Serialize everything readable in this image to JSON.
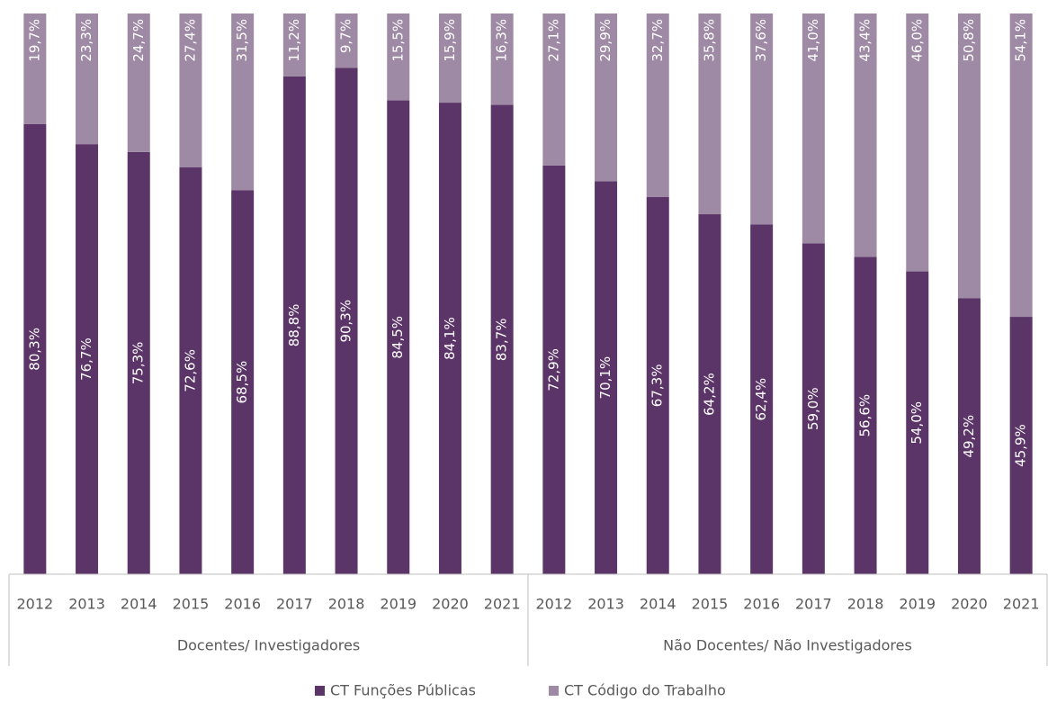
{
  "chart_data": {
    "type": "stacked-bar",
    "categories": [
      "2012",
      "2013",
      "2014",
      "2015",
      "2016",
      "2017",
      "2018",
      "2019",
      "2020",
      "2021",
      "2012",
      "2013",
      "2014",
      "2015",
      "2016",
      "2017",
      "2018",
      "2019",
      "2020",
      "2021"
    ],
    "groups": [
      "Docentes/ Investigadores",
      "Não Docentes/ Não Investigadores"
    ],
    "ylim": [
      0,
      100
    ],
    "series": [
      {
        "name": "CT Funções Públicas",
        "color": "#5c3568",
        "values": [
          80.3,
          76.7,
          75.3,
          72.6,
          68.5,
          88.8,
          90.3,
          84.5,
          84.1,
          83.7,
          72.9,
          70.1,
          67.3,
          64.2,
          62.4,
          59.0,
          56.6,
          54.0,
          49.2,
          45.9
        ],
        "value_labels": [
          "80,3%",
          "76,7%",
          "75,3%",
          "72,6%",
          "68,5%",
          "88,8%",
          "90,3%",
          "84,5%",
          "84,1%",
          "83,7%",
          "72,9%",
          "70,1%",
          "67,3%",
          "64,2%",
          "62,4%",
          "59,0%",
          "56,6%",
          "54,0%",
          "49,2%",
          "45,9%"
        ]
      },
      {
        "name": "CT Código do Trabalho",
        "color": "#9e8aa4",
        "values": [
          19.7,
          23.3,
          24.7,
          27.4,
          31.5,
          11.2,
          9.7,
          15.5,
          15.9,
          16.3,
          27.1,
          29.9,
          32.7,
          35.8,
          37.6,
          41.0,
          43.4,
          46.0,
          50.8,
          54.1
        ],
        "value_labels": [
          "19,7%",
          "23,3%",
          "24,7%",
          "27,4%",
          "31,5%",
          "11,2%",
          "9,7%",
          "15,5%",
          "15,9%",
          "16,3%",
          "27,1%",
          "29,9%",
          "32,7%",
          "35,8%",
          "37,6%",
          "41,0%",
          "43,4%",
          "46,0%",
          "50,8%",
          "54,1%"
        ]
      }
    ]
  }
}
